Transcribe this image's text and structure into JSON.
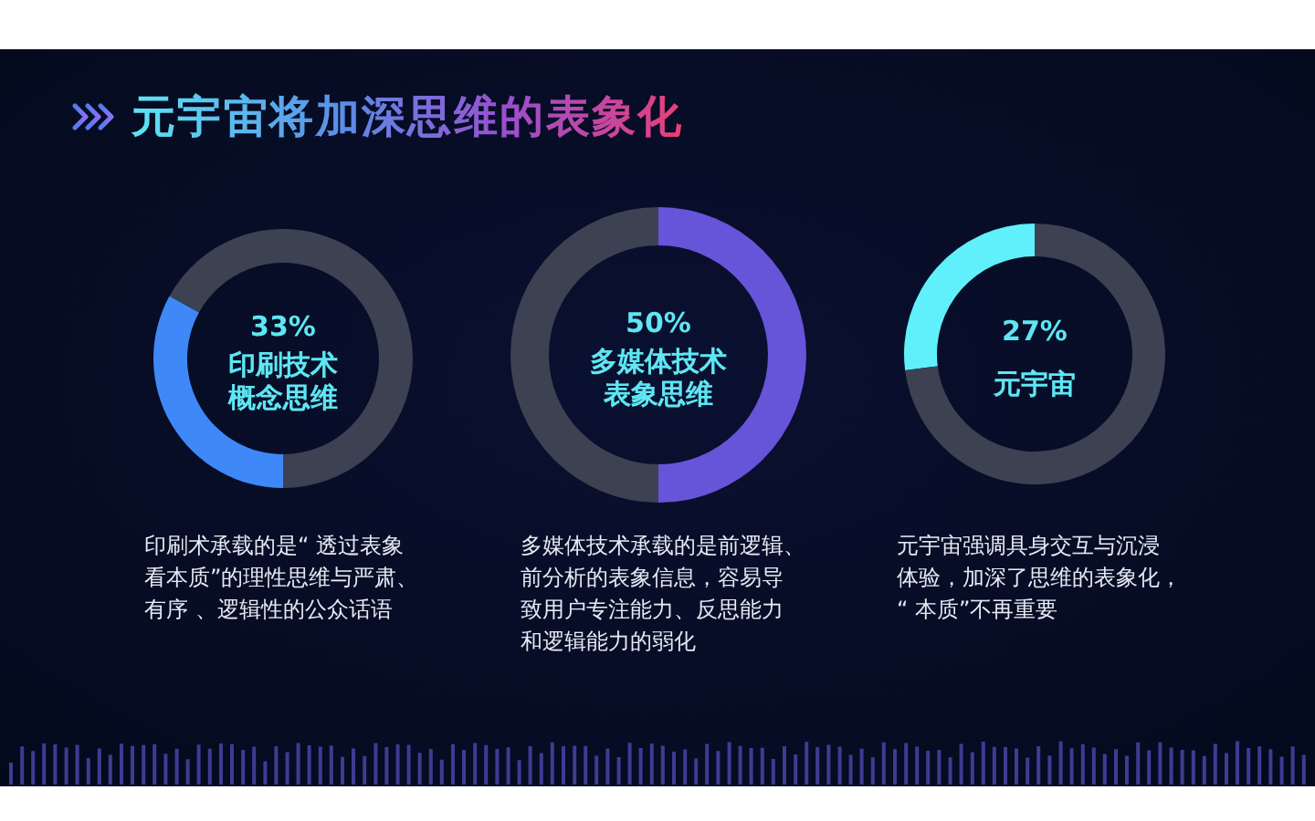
{
  "chart_data": [
    {
      "type": "other",
      "title": "元宇宙将加深思维的表象化"
    },
    {
      "type": "donut",
      "categories": [
        "印刷技术概念思维",
        null
      ],
      "values": [
        33,
        67
      ],
      "colors": [
        "#3f88f7",
        "#3c4252"
      ],
      "value_labels": [
        "33%",
        null
      ],
      "annotations": [
        "印刷术承载的是“ 透过表象看本质”的理性思维与严肃、有序 、逻辑性的公众话语"
      ]
    },
    {
      "type": "donut",
      "categories": [
        "多媒体技术表象思维",
        null
      ],
      "values": [
        50,
        50
      ],
      "colors": [
        "#6654d9",
        "#3c4252"
      ],
      "value_labels": [
        "50%",
        null
      ],
      "annotations": [
        "多媒体技术承载的是前逻辑、前分析的表象信息，容易导致用户专注能力、反思能力和逻辑能力的弱化"
      ]
    },
    {
      "type": "donut",
      "categories": [
        "元宇宙",
        null
      ],
      "values": [
        27,
        73
      ],
      "colors": [
        "#5ff0fc",
        "#3c4252"
      ],
      "value_labels": [
        "27%",
        null
      ],
      "annotations": [
        "元宇宙强调具身交互与沉浸体验，加深了思维的表象化，“ 本质”不再重要"
      ]
    }
  ]
}
